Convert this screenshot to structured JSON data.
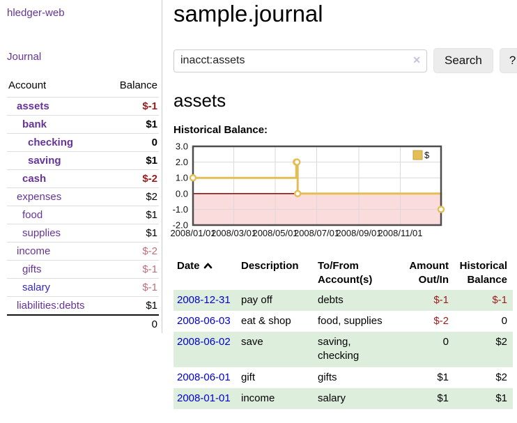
{
  "colors": {
    "purple": "#663399",
    "link-blue": "#0000d2",
    "salary-blue": "#3226cc",
    "neg-strong": "#9e1a1a",
    "neg-soft": "#bf6f7a",
    "stripe-green": "#ddeedd",
    "divider": "#cccccc",
    "chart-gold": "#e3bd55",
    "chart-pink": "#fbdcdc",
    "chart-zero": "#8c1717"
  },
  "sidebar": {
    "brand": "hledger-web",
    "journal_link": "Journal",
    "accounts_table": {
      "headers": {
        "account": "Account",
        "balance": "Balance"
      },
      "rows": [
        {
          "name": "assets",
          "depth": 1,
          "bold": true,
          "balance": "$-1",
          "balance_style": "neg-strong"
        },
        {
          "name": "bank",
          "depth": 2,
          "bold": true,
          "balance": "$1",
          "balance_style": "pos"
        },
        {
          "name": "checking",
          "depth": 3,
          "bold": true,
          "balance": "0",
          "balance_style": "pos"
        },
        {
          "name": "saving",
          "depth": 3,
          "bold": true,
          "balance": "$1",
          "balance_style": "pos"
        },
        {
          "name": "cash",
          "depth": 2,
          "bold": true,
          "balance": "$-2",
          "balance_style": "neg-strong"
        },
        {
          "name": "expenses",
          "depth": 1,
          "bold": false,
          "balance": "$2",
          "balance_style": "pos"
        },
        {
          "name": "food",
          "depth": 2,
          "bold": false,
          "balance": "$1",
          "balance_style": "pos"
        },
        {
          "name": "supplies",
          "depth": 2,
          "bold": false,
          "balance": "$1",
          "balance_style": "pos"
        },
        {
          "name": "income",
          "depth": 1,
          "bold": false,
          "balance": "$-2",
          "balance_style": "neg-soft"
        },
        {
          "name": "gifts",
          "depth": 2,
          "bold": false,
          "balance": "$-1",
          "balance_style": "neg-soft"
        },
        {
          "name": "salary",
          "depth": 2,
          "bold": false,
          "balance": "$-1",
          "balance_style": "neg-soft",
          "link_color": "blue"
        },
        {
          "name": "liabilities:debts",
          "depth": 1,
          "bold": false,
          "balance": "$1",
          "balance_style": "pos"
        }
      ],
      "total": "0"
    }
  },
  "main": {
    "title": "sample.journal",
    "search": {
      "value": "inacct:assets",
      "clear_icon": "✕",
      "button_label": "Search",
      "help_label": "?"
    },
    "account_heading": "assets",
    "chart_label": "Historical Balance:",
    "register_table": {
      "headers": [
        "Date",
        "Description",
        "To/From Account(s)",
        "Amount Out/In",
        "Historical Balance"
      ],
      "rows": [
        {
          "date": "2008-12-31",
          "description": "pay off",
          "accounts": "debts",
          "amount": "$-1",
          "amount_neg": true,
          "balance": "$-1",
          "balance_neg": true,
          "shaded": true
        },
        {
          "date": "2008-06-03",
          "description": "eat & shop",
          "accounts": "food, supplies",
          "amount": "$-2",
          "amount_neg": true,
          "balance": "0",
          "balance_neg": false,
          "shaded": false
        },
        {
          "date": "2008-06-02",
          "description": "save",
          "accounts": "saving, checking",
          "amount": "0",
          "amount_neg": false,
          "balance": "$2",
          "balance_neg": false,
          "shaded": true
        },
        {
          "date": "2008-06-01",
          "description": "gift",
          "accounts": "gifts",
          "amount": "$1",
          "amount_neg": false,
          "balance": "$2",
          "balance_neg": false,
          "shaded": false
        },
        {
          "date": "2008-01-01",
          "description": "income",
          "accounts": "salary",
          "amount": "$1",
          "amount_neg": false,
          "balance": "$1",
          "balance_neg": false,
          "shaded": true
        }
      ]
    }
  },
  "chart_data": {
    "type": "line",
    "style": "step",
    "title": "Historical Balance",
    "series": [
      {
        "name": "$",
        "color": "#e3bd55",
        "points": [
          [
            "2008-01-01",
            1
          ],
          [
            "2008-06-01",
            2
          ],
          [
            "2008-06-02",
            2
          ],
          [
            "2008-06-03",
            0
          ],
          [
            "2008-12-31",
            -1
          ]
        ]
      }
    ],
    "x_ticks": [
      {
        "label": "2008/01/01",
        "date": "2008-01-01"
      },
      {
        "label": "2008/03/01",
        "date": "2008-03-01"
      },
      {
        "label": "2008/05/01",
        "date": "2008-05-01"
      },
      {
        "label": "2008/07/01",
        "date": "2008-07-01"
      },
      {
        "label": "2008/09/01",
        "date": "2008-09-01"
      },
      {
        "label": "2008/11/01",
        "date": "2008-11-01"
      }
    ],
    "y_ticks": [
      3.0,
      2.0,
      1.0,
      0.0,
      -1.0,
      -2.0
    ],
    "ylim": [
      -2.0,
      3.0
    ],
    "xlim": [
      "2008-01-01",
      "2008-12-31"
    ],
    "grid": true,
    "legend_position": "top-right",
    "negative_region_fill": "#fbdcdc",
    "zero_line_color": "#8c1717"
  }
}
